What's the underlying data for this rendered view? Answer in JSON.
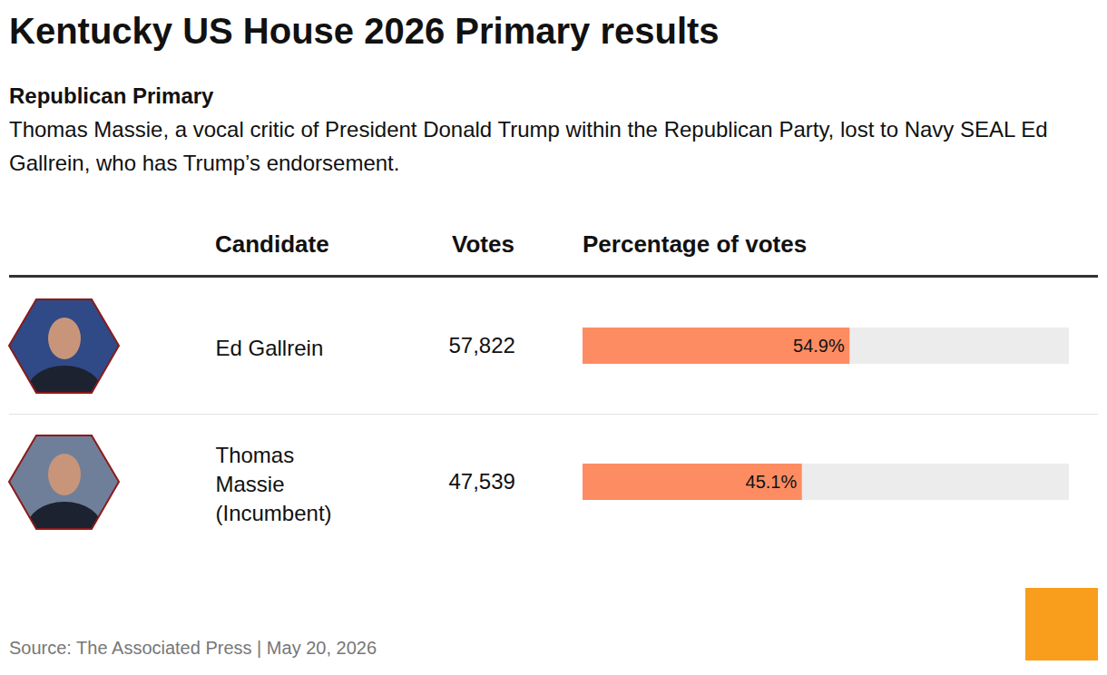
{
  "chart_data": {
    "type": "bar",
    "orientation": "horizontal",
    "title": "Kentucky US House 2026 Primary results",
    "subtitle": "Republican Primary",
    "description": "Thomas Massie, a vocal critic of President Donald Trump within the Republican Party, lost to Navy SEAL Ed Gallrein, who has Trump’s endorsement.",
    "column_headers": [
      "Candidate",
      "Votes",
      "Percentage of votes"
    ],
    "categories": [
      "Ed Gallrein",
      "Thomas Massie (Incumbent)"
    ],
    "votes": [
      57822,
      47539
    ],
    "values": [
      54.9,
      45.1
    ],
    "value_labels": [
      "54.9%",
      "45.1%"
    ],
    "color": "#fd8c62",
    "xlim": [
      0,
      100
    ],
    "data_labels": true,
    "tick_labels": false,
    "grid": false,
    "source": "Source: The Associated Press | May 20, 2026"
  }
}
